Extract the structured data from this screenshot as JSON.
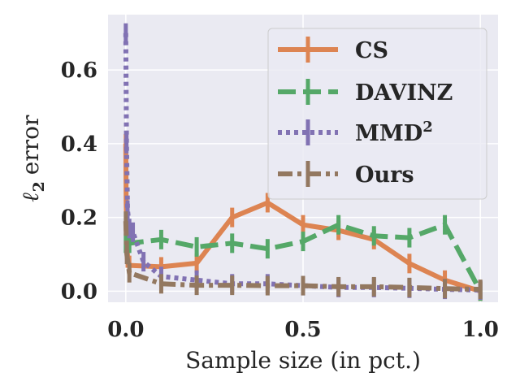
{
  "chart_data": {
    "type": "line",
    "title": "",
    "xlabel": "Sample size (in pct.)",
    "ylabel": "error",
    "ylabel_symbol": "ℓ",
    "ylabel_subscript": "2",
    "xlim": [
      -0.05,
      1.05
    ],
    "ylim": [
      -0.03,
      0.75
    ],
    "xticks": [
      0.0,
      0.5,
      1.0
    ],
    "xtick_labels": [
      "0.0",
      "0.5",
      "1.0"
    ],
    "yticks": [
      0.0,
      0.2,
      0.4,
      0.6
    ],
    "ytick_labels": [
      "0.0",
      "0.2",
      "0.4",
      "0.6"
    ],
    "grid": true,
    "legend_position": "top-right",
    "colors": {
      "background": "#eaeaf2",
      "grid": "#ffffff"
    },
    "series": [
      {
        "name": "CS",
        "legend_label": "CS",
        "color": "#dd8452",
        "style": "solid",
        "x": [
          0.0,
          0.001,
          0.005,
          0.01,
          0.1,
          0.2,
          0.3,
          0.4,
          0.5,
          0.6,
          0.7,
          0.8,
          0.9,
          1.0
        ],
        "values": [
          0.4,
          0.24,
          0.09,
          0.07,
          0.066,
          0.076,
          0.2,
          0.24,
          0.18,
          0.165,
          0.14,
          0.075,
          0.03,
          0.0
        ]
      },
      {
        "name": "DAVINZ",
        "legend_label": "DAVINZ",
        "color": "#55a868",
        "style": "dashed",
        "x": [
          0.0,
          0.005,
          0.01,
          0.1,
          0.2,
          0.3,
          0.4,
          0.5,
          0.6,
          0.7,
          0.8,
          0.9,
          1.0
        ],
        "values": [
          0.13,
          0.13,
          0.13,
          0.14,
          0.12,
          0.13,
          0.115,
          0.135,
          0.18,
          0.15,
          0.145,
          0.18,
          0.0
        ]
      },
      {
        "name": "MMD2",
        "legend_label": "MMD",
        "legend_superscript": "2",
        "color": "#8172b3",
        "style": "dotted",
        "x": [
          0.0,
          0.002,
          0.005,
          0.01,
          0.02,
          0.05,
          0.1,
          0.2,
          0.3,
          0.4,
          0.5,
          0.6,
          0.7,
          0.8,
          0.9,
          1.0
        ],
        "values": [
          0.7,
          0.4,
          0.22,
          0.17,
          0.16,
          0.08,
          0.04,
          0.03,
          0.02,
          0.02,
          0.015,
          0.01,
          0.01,
          0.008,
          0.005,
          0.003
        ]
      },
      {
        "name": "Ours",
        "legend_label": "Ours",
        "color": "#937860",
        "style": "dashdot",
        "x": [
          0.0,
          0.003,
          0.01,
          0.1,
          0.2,
          0.3,
          0.4,
          0.5,
          0.6,
          0.7,
          0.8,
          0.9,
          1.0
        ],
        "values": [
          0.19,
          0.1,
          0.05,
          0.02,
          0.016,
          0.016,
          0.015,
          0.015,
          0.012,
          0.012,
          0.01,
          0.007,
          0.005
        ]
      }
    ]
  }
}
